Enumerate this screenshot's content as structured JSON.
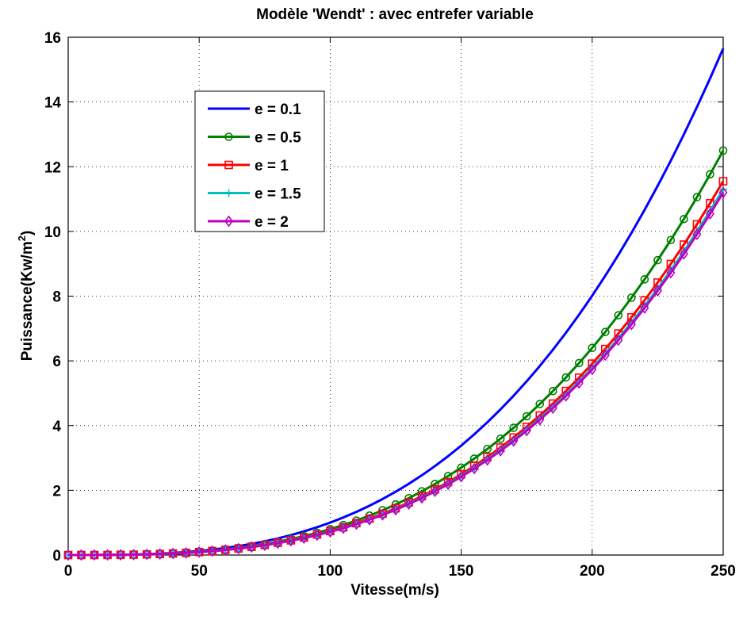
{
  "chart_data": {
    "type": "line",
    "title": "Modèle 'Wendt' : avec entrefer variable",
    "xlabel": "Vitesse(m/s)",
    "ylabel_main": "Puissance(Kw/m",
    "ylabel_sup": "2",
    "ylabel_close": ")",
    "xlim": [
      0,
      250
    ],
    "ylim": [
      0,
      16
    ],
    "xticks": [
      0,
      50,
      100,
      150,
      200,
      250
    ],
    "yticks": [
      0,
      2,
      4,
      6,
      8,
      10,
      12,
      14,
      16
    ],
    "grid": true,
    "legend_position": "upper-left",
    "x_step": 5,
    "series": [
      {
        "name": "e = 0.1",
        "color": "#0000ff",
        "marker": "none",
        "cubic_coefficient": 15.65
      },
      {
        "name": "e = 0.5",
        "color": "#008000",
        "marker": "circle",
        "cubic_coefficient": 12.5
      },
      {
        "name": "e = 1",
        "color": "#ff0000",
        "marker": "square",
        "cubic_coefficient": 11.55
      },
      {
        "name": "e = 1.5",
        "color": "#00bfbf",
        "marker": "plus",
        "cubic_coefficient": 11.3
      },
      {
        "name": "e = 2",
        "color": "#bf00bf",
        "marker": "diamond",
        "cubic_coefficient": 11.2
      }
    ]
  }
}
